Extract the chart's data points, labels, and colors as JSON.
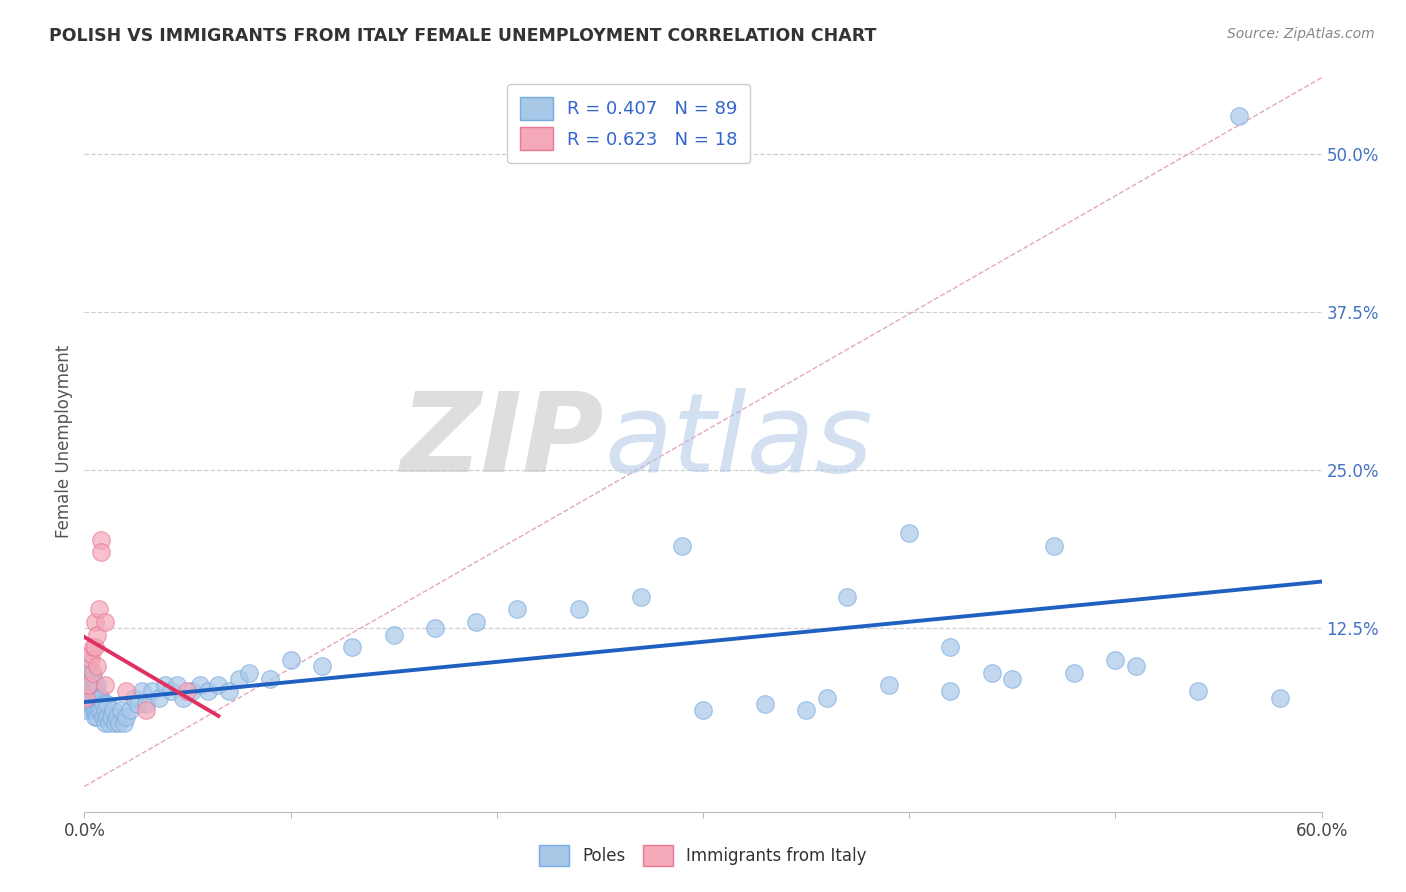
{
  "title": "POLISH VS IMMIGRANTS FROM ITALY FEMALE UNEMPLOYMENT CORRELATION CHART",
  "source": "Source: ZipAtlas.com",
  "ylabel": "Female Unemployment",
  "xlim": [
    0.0,
    0.6
  ],
  "ylim": [
    -0.02,
    0.565
  ],
  "blue_color": "#a8c8e8",
  "blue_edge_color": "#7aace0",
  "pink_color": "#f4a8b8",
  "pink_edge_color": "#e87898",
  "blue_line_color": "#2060c0",
  "pink_line_color": "#e03060",
  "diag_color": "#e8b8c0",
  "legend_blue_label": "R = 0.407   N = 89",
  "legend_pink_label": "R = 0.623   N = 18",
  "poles_x": [
    0.001,
    0.001,
    0.002,
    0.002,
    0.002,
    0.003,
    0.003,
    0.003,
    0.003,
    0.004,
    0.004,
    0.004,
    0.004,
    0.005,
    0.005,
    0.005,
    0.005,
    0.005,
    0.006,
    0.006,
    0.006,
    0.006,
    0.007,
    0.007,
    0.007,
    0.008,
    0.008,
    0.009,
    0.009,
    0.01,
    0.01,
    0.011,
    0.011,
    0.012,
    0.013,
    0.014,
    0.015,
    0.016,
    0.017,
    0.018,
    0.019,
    0.02,
    0.022,
    0.024,
    0.026,
    0.028,
    0.03,
    0.033,
    0.036,
    0.039,
    0.042,
    0.045,
    0.048,
    0.052,
    0.056,
    0.06,
    0.065,
    0.07,
    0.075,
    0.08,
    0.09,
    0.1,
    0.115,
    0.13,
    0.15,
    0.17,
    0.19,
    0.21,
    0.24,
    0.27,
    0.3,
    0.33,
    0.36,
    0.39,
    0.42,
    0.45,
    0.48,
    0.51,
    0.54,
    0.29,
    0.4,
    0.37,
    0.47,
    0.5,
    0.44,
    0.35,
    0.42,
    0.56,
    0.58
  ],
  "poles_y": [
    0.08,
    0.06,
    0.075,
    0.095,
    0.085,
    0.07,
    0.08,
    0.065,
    0.09,
    0.06,
    0.075,
    0.085,
    0.065,
    0.055,
    0.07,
    0.08,
    0.06,
    0.075,
    0.06,
    0.07,
    0.08,
    0.055,
    0.065,
    0.07,
    0.06,
    0.06,
    0.07,
    0.055,
    0.065,
    0.05,
    0.06,
    0.055,
    0.065,
    0.05,
    0.055,
    0.06,
    0.05,
    0.055,
    0.05,
    0.06,
    0.05,
    0.055,
    0.06,
    0.07,
    0.065,
    0.075,
    0.065,
    0.075,
    0.07,
    0.08,
    0.075,
    0.08,
    0.07,
    0.075,
    0.08,
    0.075,
    0.08,
    0.075,
    0.085,
    0.09,
    0.085,
    0.1,
    0.095,
    0.11,
    0.12,
    0.125,
    0.13,
    0.14,
    0.14,
    0.15,
    0.06,
    0.065,
    0.07,
    0.08,
    0.075,
    0.085,
    0.09,
    0.095,
    0.075,
    0.19,
    0.2,
    0.15,
    0.19,
    0.1,
    0.09,
    0.06,
    0.11,
    0.53,
    0.07
  ],
  "italy_x": [
    0.001,
    0.002,
    0.003,
    0.003,
    0.004,
    0.004,
    0.005,
    0.005,
    0.006,
    0.006,
    0.007,
    0.008,
    0.008,
    0.01,
    0.01,
    0.02,
    0.05,
    0.03
  ],
  "italy_y": [
    0.07,
    0.08,
    0.1,
    0.105,
    0.11,
    0.09,
    0.13,
    0.11,
    0.12,
    0.095,
    0.14,
    0.195,
    0.185,
    0.13,
    0.08,
    0.075,
    0.075,
    0.06
  ],
  "watermark_zip": "ZIP",
  "watermark_atlas": "atlas",
  "background_color": "#ffffff",
  "grid_color": "#d0d0d0"
}
